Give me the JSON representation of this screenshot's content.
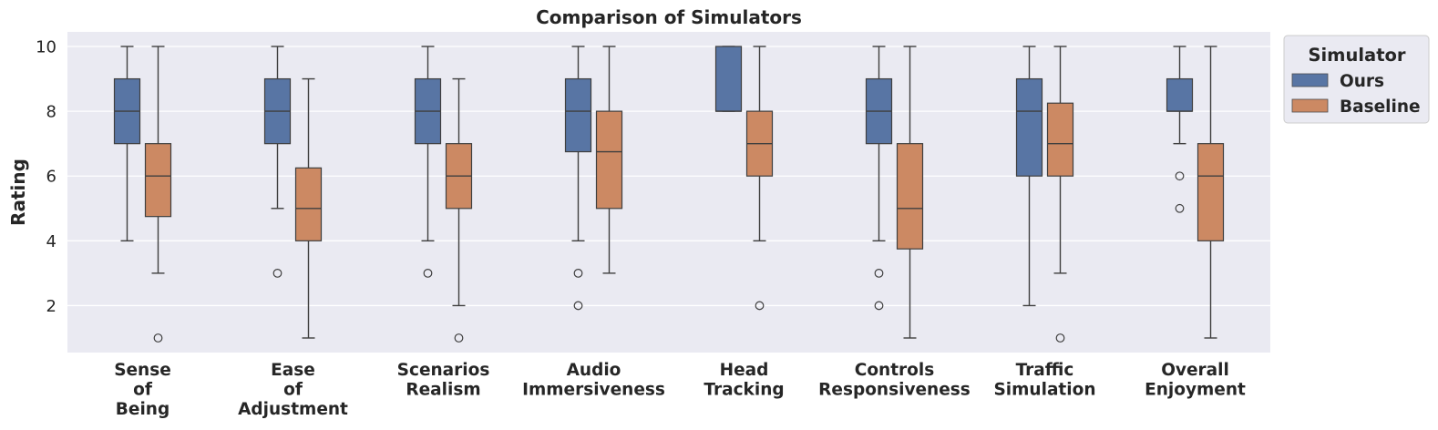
{
  "chart_data": {
    "type": "boxplot",
    "title": "Comparison of Simulators",
    "xlabel": "",
    "ylabel": "Rating",
    "ylim": [
      0.55,
      10.45
    ],
    "yticks": [
      2,
      4,
      6,
      8,
      10
    ],
    "grid": true,
    "legend": {
      "title": "Simulator",
      "placement": "upper-right-outside"
    },
    "categories": [
      [
        "Sense",
        "of",
        "Being"
      ],
      [
        "Ease",
        "of",
        "Adjustment"
      ],
      [
        "Scenarios",
        "Realism"
      ],
      [
        "Audio",
        "Immersiveness"
      ],
      [
        "Head",
        "Tracking"
      ],
      [
        "Controls",
        "Responsiveness"
      ],
      [
        "Traffic",
        "Simulation"
      ],
      [
        "Overall",
        "Enjoyment"
      ]
    ],
    "series": [
      {
        "name": "Ours",
        "color": "#5875a4",
        "boxes": [
          {
            "whislo": 4,
            "q1": 7,
            "med": 8,
            "q3": 9,
            "whishi": 10,
            "fliers": []
          },
          {
            "whislo": 5,
            "q1": 7,
            "med": 8,
            "q3": 9,
            "whishi": 10,
            "fliers": [
              3
            ]
          },
          {
            "whislo": 4,
            "q1": 7,
            "med": 8,
            "q3": 9,
            "whishi": 10,
            "fliers": [
              3
            ]
          },
          {
            "whislo": 4,
            "q1": 6.75,
            "med": 8,
            "q3": 9,
            "whishi": 10,
            "fliers": [
              3,
              2
            ]
          },
          {
            "whislo": 8,
            "q1": 8,
            "med": 8,
            "q3": 10,
            "whishi": 10,
            "fliers": []
          },
          {
            "whislo": 4,
            "q1": 7,
            "med": 8,
            "q3": 9,
            "whishi": 10,
            "fliers": [
              3,
              2
            ]
          },
          {
            "whislo": 2,
            "q1": 6,
            "med": 8,
            "q3": 9,
            "whishi": 10,
            "fliers": []
          },
          {
            "whislo": 7,
            "q1": 8,
            "med": 8,
            "q3": 9,
            "whishi": 10,
            "fliers": [
              6,
              5
            ]
          }
        ]
      },
      {
        "name": "Baseline",
        "color": "#cc8963",
        "boxes": [
          {
            "whislo": 3,
            "q1": 4.75,
            "med": 6,
            "q3": 7,
            "whishi": 10,
            "fliers": [
              1
            ]
          },
          {
            "whislo": 1,
            "q1": 4,
            "med": 5,
            "q3": 6.25,
            "whishi": 9,
            "fliers": []
          },
          {
            "whislo": 2,
            "q1": 5,
            "med": 6,
            "q3": 7,
            "whishi": 9,
            "fliers": [
              1
            ]
          },
          {
            "whislo": 3,
            "q1": 5,
            "med": 6.75,
            "q3": 8,
            "whishi": 10,
            "fliers": []
          },
          {
            "whislo": 4,
            "q1": 6,
            "med": 7,
            "q3": 8,
            "whishi": 10,
            "fliers": [
              2
            ]
          },
          {
            "whislo": 1,
            "q1": 3.75,
            "med": 5,
            "q3": 7,
            "whishi": 10,
            "fliers": []
          },
          {
            "whislo": 3,
            "q1": 6,
            "med": 7,
            "q3": 8.25,
            "whishi": 10,
            "fliers": [
              1
            ]
          },
          {
            "whislo": 1,
            "q1": 4,
            "med": 6,
            "q3": 7,
            "whishi": 10,
            "fliers": []
          }
        ]
      }
    ]
  }
}
